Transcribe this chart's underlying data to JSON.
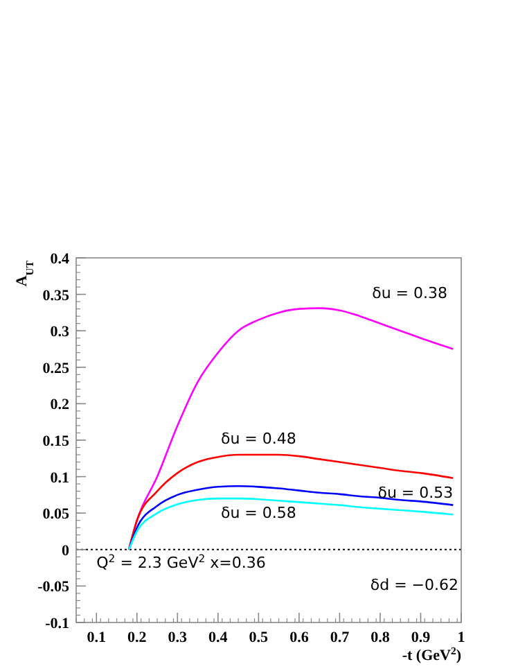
{
  "chart_data": {
    "type": "line",
    "xlabel": "-t (GeV$^{2}$)",
    "ylabel": "A$_{UT}$",
    "xlim": [
      0.05,
      1.0
    ],
    "ylim": [
      -0.1,
      0.4
    ],
    "xticks": [
      0.1,
      0.2,
      0.3,
      0.4,
      0.5,
      0.6,
      0.7,
      0.8,
      0.9,
      1
    ],
    "yticks": [
      -0.1,
      -0.05,
      0,
      0.05,
      0.1,
      0.15,
      0.2,
      0.25,
      0.3,
      0.35,
      0.4
    ],
    "x": [
      0.18,
      0.2,
      0.25,
      0.3,
      0.35,
      0.4,
      0.45,
      0.5,
      0.55,
      0.6,
      0.65,
      0.7,
      0.75,
      0.8,
      0.85,
      0.9,
      0.98
    ],
    "series": [
      {
        "name": "δu = 0.38",
        "color": "#ff00ff",
        "values": [
          0,
          0.04,
          0.1,
          0.17,
          0.23,
          0.27,
          0.3,
          0.315,
          0.325,
          0.33,
          0.331,
          0.328,
          0.32,
          0.31,
          0.3,
          0.29,
          0.275
        ]
      },
      {
        "name": "δu = 0.48",
        "color": "#ff0000",
        "values": [
          0,
          0.04,
          0.08,
          0.105,
          0.12,
          0.127,
          0.13,
          0.13,
          0.13,
          0.128,
          0.124,
          0.12,
          0.116,
          0.112,
          0.108,
          0.105,
          0.098
        ]
      },
      {
        "name": "δu = 0.53",
        "color": "#0000ff",
        "values": [
          0,
          0.03,
          0.06,
          0.075,
          0.082,
          0.086,
          0.087,
          0.086,
          0.084,
          0.081,
          0.078,
          0.076,
          0.073,
          0.071,
          0.068,
          0.066,
          0.061
        ]
      },
      {
        "name": "δu = 0.58",
        "color": "#00ffff",
        "values": [
          0,
          0.025,
          0.05,
          0.062,
          0.068,
          0.07,
          0.07,
          0.069,
          0.067,
          0.065,
          0.063,
          0.061,
          0.058,
          0.056,
          0.054,
          0.052,
          0.048
        ]
      }
    ],
    "ref_lines": [
      {
        "axis": "y",
        "value": 0,
        "line_style": "dotted",
        "color": "#000000"
      }
    ],
    "annotations": [
      "Q$^{2}$ = 2.3 GeV$^{2}$ x=0.36",
      "δd = −0.62"
    ],
    "legend": false,
    "grid": false,
    "marker": "none",
    "line_style": "solid"
  }
}
